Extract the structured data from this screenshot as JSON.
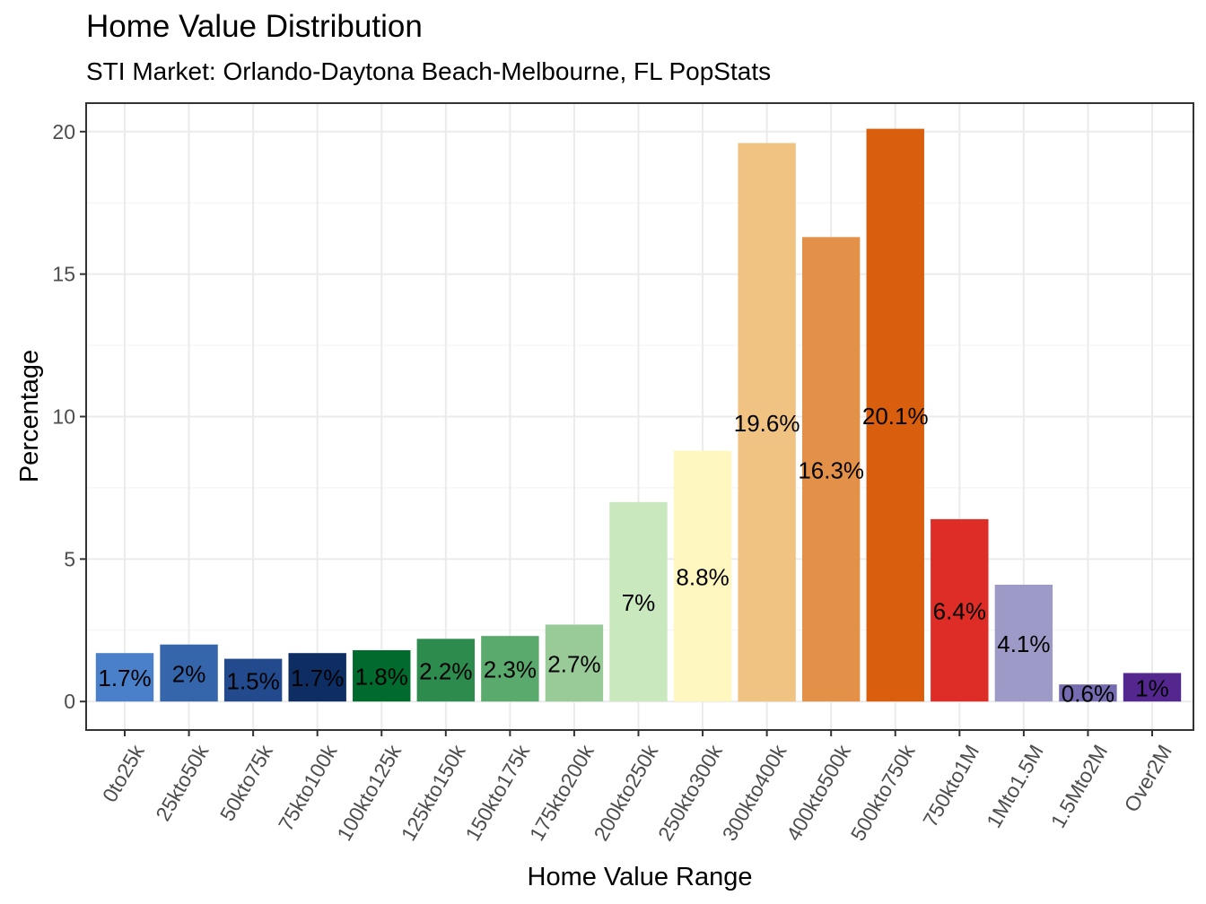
{
  "chart_data": {
    "type": "bar",
    "title": "Home Value Distribution",
    "subtitle": "STI Market: Orlando-Daytona Beach-Melbourne, FL PopStats",
    "xlabel": "Home Value Range",
    "ylabel": "Percentage",
    "ylim": [
      -1,
      21
    ],
    "yticks": [
      0,
      5,
      10,
      15,
      20
    ],
    "grid": true,
    "legend": "none",
    "categories": [
      "0to25k",
      "25kto50k",
      "50kto75k",
      "75kto100k",
      "100kto125k",
      "125kto150k",
      "150kto175k",
      "175kto200k",
      "200kto250k",
      "250kto300k",
      "300kto400k",
      "400kto500k",
      "500kto750k",
      "750kto1M",
      "1Mto1.5M",
      "1.5Mto2M",
      "Over2M"
    ],
    "values": [
      1.7,
      2.0,
      1.5,
      1.7,
      1.8,
      2.2,
      2.3,
      2.7,
      7.0,
      8.8,
      19.6,
      16.3,
      20.1,
      6.4,
      4.1,
      0.6,
      1.0
    ],
    "labels": [
      "1.7%",
      "2%",
      "1.5%",
      "1.7%",
      "1.8%",
      "2.2%",
      "2.3%",
      "2.7%",
      "7%",
      "8.8%",
      "19.6%",
      "16.3%",
      "20.1%",
      "6.4%",
      "4.1%",
      "0.6%",
      "1%"
    ],
    "colors": [
      "#4A7FC9",
      "#3565AA",
      "#224A8C",
      "#0E2D63",
      "#006B2D",
      "#2E8B4E",
      "#5AAA6D",
      "#98CB97",
      "#C9E8BE",
      "#FFF7BF",
      "#F0C382",
      "#E39148",
      "#D95F0E",
      "#DE2D26",
      "#9E9AC8",
      "#756BB1",
      "#54278F"
    ]
  }
}
